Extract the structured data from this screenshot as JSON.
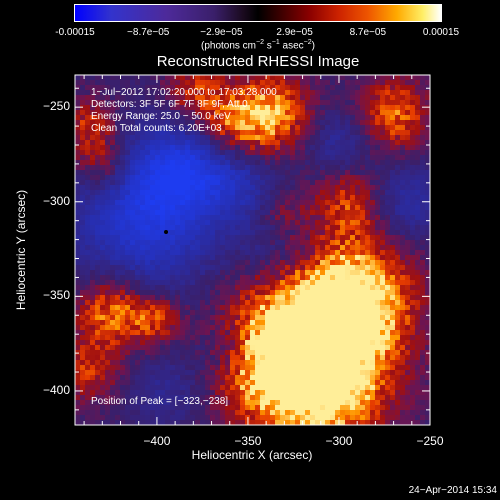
{
  "colorbar": {
    "tick_labels": [
      "-0.00015",
      "−8.7e−05",
      "−2.9e−05",
      "2.9e−05",
      "8.7e−05",
      "0.00015"
    ],
    "unit_main": "(photons cm",
    "unit_exp1": "−2",
    "unit_s": " s",
    "unit_exp2": "−1",
    "unit_asec": " asec",
    "unit_exp3": "−2",
    "unit_close": ")"
  },
  "title": "Reconstructed RHESSI Image",
  "annotations": {
    "time": "1−Jul−2012 17:02:20.000 to 17:03:28.000",
    "detectors": "Detectors: 3F 5F 6F 7F 8F 9F, Att 0",
    "energy": "Energy Range: 25.0 − 50.0 keV",
    "clean": "Clean     Total counts: 6.20E+03",
    "peak": "Position of Peak = [−323,−238]"
  },
  "timestamp": "24−Apr−2014 15:34",
  "chart_data": {
    "type": "heatmap",
    "title": "Reconstructed RHESSI Image",
    "xlabel": "Heliocentric X (arcsec)",
    "ylabel": "Heliocentric Y (arcsec)",
    "xlim": [
      -445,
      -250
    ],
    "ylim": [
      -418,
      -233
    ],
    "x_ticks": [
      -400,
      -350,
      -300,
      -250
    ],
    "x_tick_labels": [
      "−400",
      "−350",
      "−300",
      "−250"
    ],
    "y_ticks": [
      -250,
      -300,
      -350,
      -400
    ],
    "y_tick_labels": [
      "−250",
      "−300",
      "−350",
      "−400"
    ],
    "colorbar_range": [
      -0.00015,
      0.00015
    ],
    "peak_position": [
      -323,
      -238
    ],
    "colors": {
      "negative": "#2a3adf",
      "background": "#3a1f6a",
      "low": "#5a2090",
      "mid_positive": "#a01010",
      "high_positive": "#ff6600",
      "peak": "#ffee99"
    },
    "bright_regions": [
      {
        "x": -318,
        "y": -366,
        "r": 30,
        "intensity": 1.0
      },
      {
        "x": -292,
        "y": -352,
        "r": 22,
        "intensity": 0.9
      },
      {
        "x": -340,
        "y": -390,
        "r": 20,
        "intensity": 0.7
      },
      {
        "x": -305,
        "y": -400,
        "r": 22,
        "intensity": 0.8
      },
      {
        "x": -338,
        "y": -254,
        "r": 16,
        "intensity": 0.85
      },
      {
        "x": -360,
        "y": -262,
        "r": 14,
        "intensity": 0.6
      },
      {
        "x": -270,
        "y": -254,
        "r": 14,
        "intensity": 0.7
      },
      {
        "x": -295,
        "y": -300,
        "r": 14,
        "intensity": 0.55
      },
      {
        "x": -330,
        "y": -308,
        "r": 10,
        "intensity": 0.4
      },
      {
        "x": -380,
        "y": -242,
        "r": 12,
        "intensity": 0.5
      },
      {
        "x": -437,
        "y": -262,
        "r": 12,
        "intensity": 0.6
      },
      {
        "x": -430,
        "y": -282,
        "r": 10,
        "intensity": 0.45
      },
      {
        "x": -425,
        "y": -358,
        "r": 14,
        "intensity": 0.8
      },
      {
        "x": -400,
        "y": -362,
        "r": 10,
        "intensity": 0.55
      },
      {
        "x": -438,
        "y": -390,
        "r": 12,
        "intensity": 0.5
      }
    ],
    "negative_regions": [
      {
        "x": -405,
        "y": -308,
        "r": 30,
        "intensity": 0.9
      },
      {
        "x": -385,
        "y": -280,
        "r": 18,
        "intensity": 0.6
      },
      {
        "x": -355,
        "y": -285,
        "r": 16,
        "intensity": 0.5
      },
      {
        "x": -330,
        "y": -325,
        "r": 18,
        "intensity": 0.5
      },
      {
        "x": -300,
        "y": -270,
        "r": 14,
        "intensity": 0.45
      },
      {
        "x": -262,
        "y": -300,
        "r": 15,
        "intensity": 0.5
      },
      {
        "x": -360,
        "y": -380,
        "r": 14,
        "intensity": 0.4
      },
      {
        "x": -395,
        "y": -400,
        "r": 14,
        "intensity": 0.35
      }
    ]
  }
}
